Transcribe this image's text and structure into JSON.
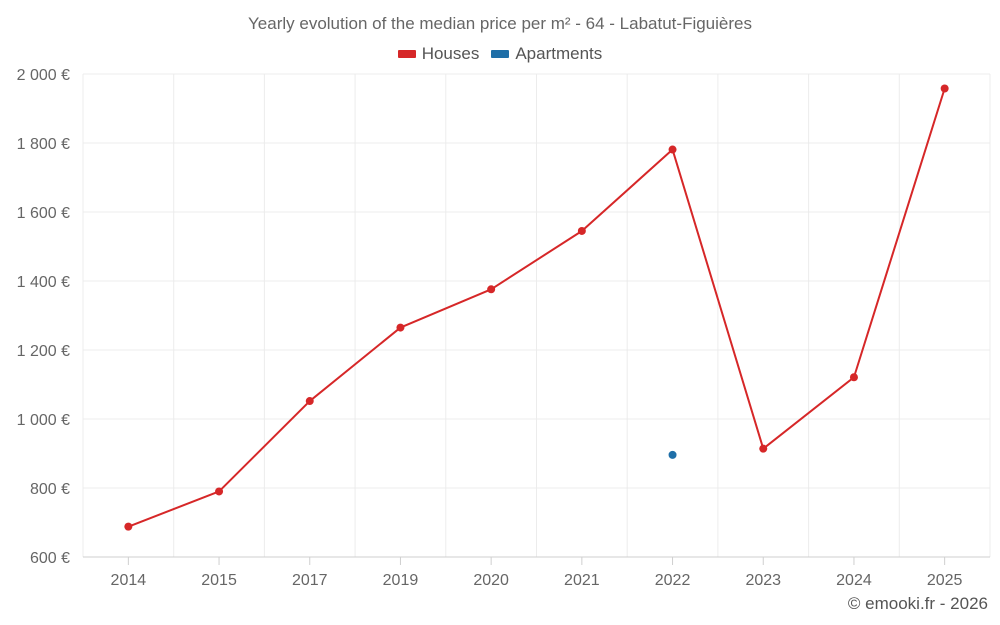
{
  "chart_data": {
    "type": "line",
    "title": "Yearly evolution of the median price per m² - 64 - Labatut-Figuières",
    "categories": [
      "2014",
      "2015",
      "2017",
      "2019",
      "2020",
      "2021",
      "2022",
      "2023",
      "2024",
      "2025"
    ],
    "y_ticks": [
      "600 €",
      "800 €",
      "1 000 €",
      "1 200 €",
      "1 400 €",
      "1 600 €",
      "1 800 €",
      "2 000 €"
    ],
    "y_tick_values": [
      600,
      800,
      1000,
      1200,
      1400,
      1600,
      1800,
      2000
    ],
    "ylim": [
      600,
      2000
    ],
    "grid": true,
    "legend_position": "top-center",
    "series": [
      {
        "name": "Houses",
        "color": "#d62728",
        "values": [
          688,
          790,
          1052,
          1265,
          1376,
          1545,
          1781,
          914,
          1121,
          1958
        ]
      },
      {
        "name": "Apartments",
        "color": "#1f6fa8",
        "values": [
          null,
          null,
          null,
          null,
          null,
          null,
          896,
          null,
          null,
          null
        ]
      }
    ]
  },
  "footer": {
    "credit": "© emooki.fr - 2026"
  }
}
